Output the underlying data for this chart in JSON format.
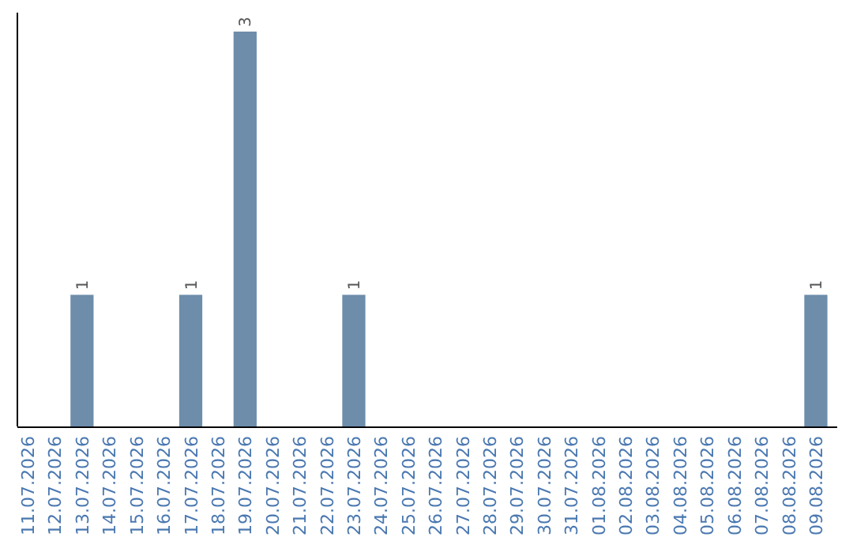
{
  "chart_data": {
    "type": "bar",
    "categories": [
      "11.07.2026",
      "12.07.2026",
      "13.07.2026",
      "14.07.2026",
      "15.07.2026",
      "16.07.2026",
      "17.07.2026",
      "18.07.2026",
      "19.07.2026",
      "20.07.2026",
      "21.07.2026",
      "22.07.2026",
      "23.07.2026",
      "24.07.2026",
      "25.07.2026",
      "26.07.2026",
      "27.07.2026",
      "28.07.2026",
      "29.07.2026",
      "30.07.2026",
      "31.07.2026",
      "01.08.2026",
      "02.08.2026",
      "03.08.2026",
      "04.08.2026",
      "05.08.2026",
      "06.08.2026",
      "07.08.2026",
      "08.08.2026",
      "09.08.2026"
    ],
    "values": [
      0,
      0,
      1,
      0,
      0,
      0,
      1,
      0,
      3,
      0,
      0,
      0,
      1,
      0,
      0,
      0,
      0,
      0,
      0,
      0,
      0,
      0,
      0,
      0,
      0,
      0,
      0,
      0,
      0,
      1
    ],
    "value_labels": [
      null,
      null,
      "1",
      null,
      null,
      null,
      "1",
      null,
      "3",
      null,
      null,
      null,
      "1",
      null,
      null,
      null,
      null,
      null,
      null,
      null,
      null,
      null,
      null,
      null,
      null,
      null,
      null,
      null,
      null,
      "1"
    ],
    "color": "#6d8dab",
    "tick_labels": "x",
    "grid": false
  }
}
